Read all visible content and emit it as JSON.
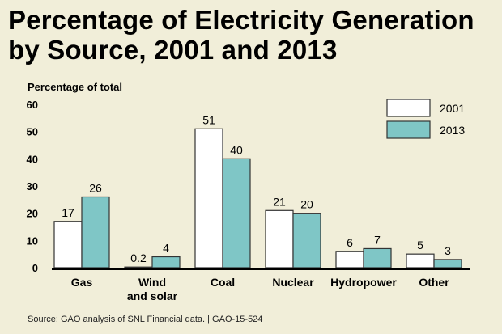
{
  "title_lines": [
    "Percentage of Electricity Generation",
    "by Source, 2001 and 2013"
  ],
  "source": "Source: GAO analysis of SNL Financial data.  | GAO-15-524",
  "colors": {
    "background": "#f1eed9",
    "series_2001": "#ffffff",
    "series_2013": "#7fc6c6",
    "bar_stroke": "#333333",
    "axis": "#000000"
  },
  "chart_data": {
    "type": "bar",
    "title": "Percentage of Electricity Generation by Source, 2001 and 2013",
    "ylabel": "Percentage of total",
    "xlabel": "",
    "ylim": [
      0,
      60
    ],
    "yticks": [
      "0",
      "10",
      "20",
      "30",
      "40",
      "50",
      "60"
    ],
    "grid": false,
    "legend_position": "top-right",
    "categories": [
      [
        "Gas"
      ],
      [
        "Wind",
        "and solar"
      ],
      [
        "Coal"
      ],
      [
        "Nuclear"
      ],
      [
        "Hydropower"
      ],
      [
        "Other"
      ]
    ],
    "series": [
      {
        "name": "2001",
        "values": [
          17,
          0.2,
          51,
          21,
          6,
          5
        ],
        "labels": [
          "17",
          "0.2",
          "51",
          "21",
          "6",
          "5"
        ]
      },
      {
        "name": "2013",
        "values": [
          26,
          4,
          40,
          20,
          7,
          3
        ],
        "labels": [
          "26",
          "4",
          "40",
          "20",
          "7",
          "3"
        ]
      }
    ]
  }
}
